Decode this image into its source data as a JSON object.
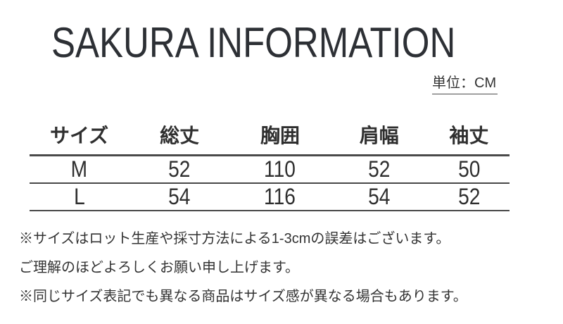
{
  "page": {
    "title": "SAKURA INFORMATION",
    "unit_label": "単位：CM"
  },
  "size_table": {
    "columns": [
      "サイズ",
      "総丈",
      "胸囲",
      "肩幅",
      "袖丈"
    ],
    "rows": [
      {
        "size": "M",
        "values": [
          "52",
          "110",
          "52",
          "50"
        ]
      },
      {
        "size": "L",
        "values": [
          "54",
          "116",
          "54",
          "52"
        ]
      }
    ]
  },
  "notes": [
    "※サイズはロット生産や採寸方法による1-3cmの誤差はございます。",
    "ご理解のほどよろしくお願い申し上げます。",
    "※同じサイズ表記でも異なる商品はサイズ感が異なる場合もあります。"
  ],
  "colors": {
    "background": "#ffffff",
    "text": "#333333",
    "title": "#2d3035",
    "table_line": "#4a4a4a"
  }
}
